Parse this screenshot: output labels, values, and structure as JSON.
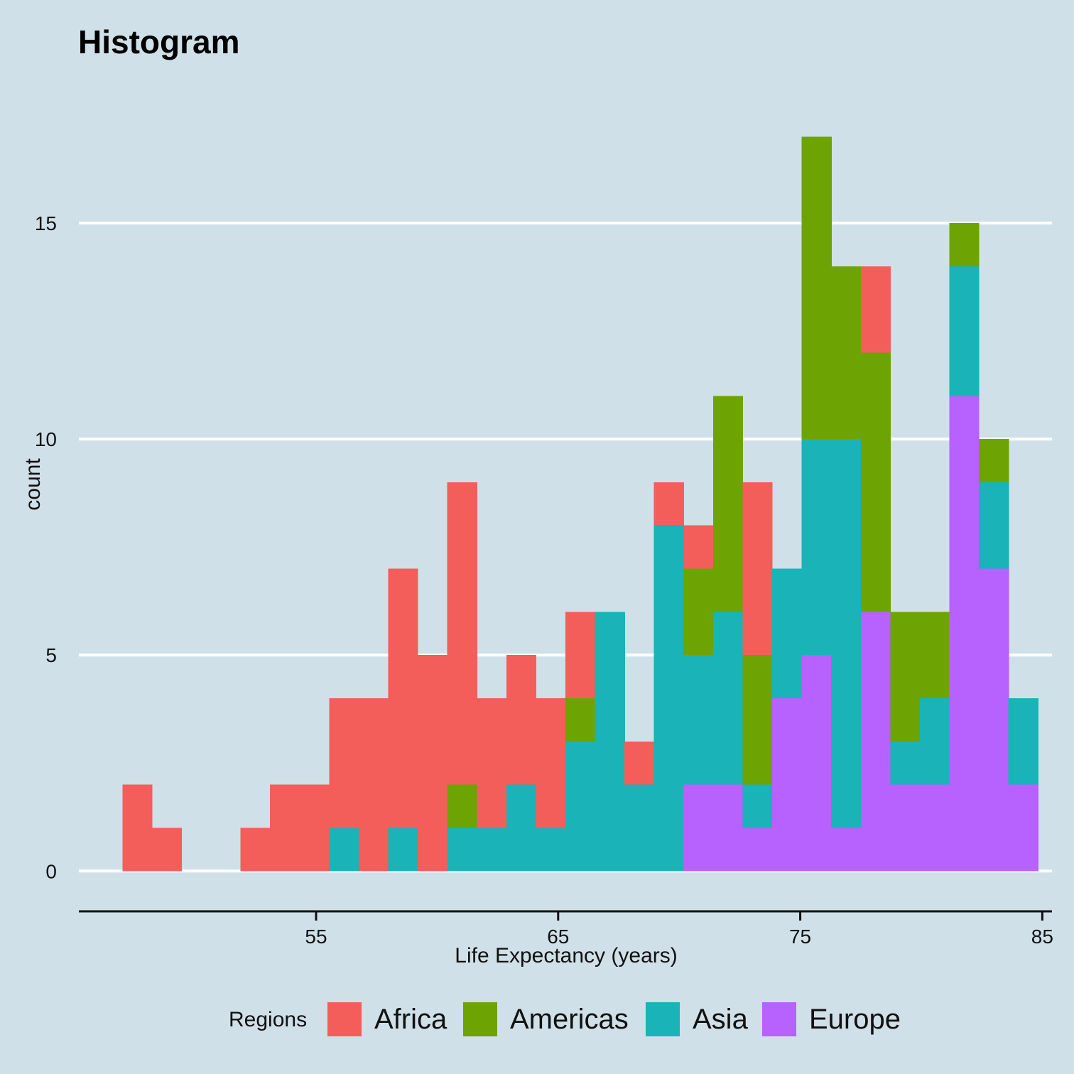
{
  "chart_data": {
    "type": "bar",
    "subtype": "stacked-histogram",
    "title": "Histogram",
    "xlabel": "Life Expectancy (years)",
    "ylabel": "count",
    "x_ticks": [
      55,
      65,
      75,
      85
    ],
    "y_ticks": [
      0,
      5,
      10,
      15
    ],
    "xlim": [
      45.2,
      85.4
    ],
    "ylim": [
      -0.85,
      18.6
    ],
    "grid": "horizontal",
    "legend": {
      "title": "Regions",
      "position": "bottom",
      "entries": [
        "Africa",
        "Americas",
        "Asia",
        "Europe"
      ]
    },
    "bin_start": 47.0,
    "bin_width": 1.22,
    "series": [
      {
        "name": "Europe",
        "color": "#b761ff",
        "values": [
          0,
          0,
          0,
          0,
          0,
          0,
          0,
          0,
          0,
          0,
          0,
          0,
          0,
          0,
          0,
          0,
          0,
          0,
          0,
          2,
          2,
          1,
          4,
          5,
          1,
          6,
          2,
          2,
          11,
          7,
          2
        ]
      },
      {
        "name": "Asia",
        "color": "#19b3b8",
        "values": [
          0,
          0,
          0,
          0,
          0,
          0,
          0,
          1,
          0,
          1,
          0,
          1,
          1,
          2,
          1,
          3,
          6,
          2,
          8,
          3,
          4,
          1,
          3,
          5,
          9,
          0,
          1,
          2,
          3,
          2,
          2
        ]
      },
      {
        "name": "Americas",
        "color": "#6da303",
        "values": [
          0,
          0,
          0,
          0,
          0,
          0,
          0,
          0,
          0,
          0,
          0,
          1,
          0,
          0,
          0,
          1,
          0,
          0,
          0,
          2,
          5,
          3,
          0,
          7,
          4,
          6,
          3,
          2,
          1,
          1,
          0
        ]
      },
      {
        "name": "Africa",
        "color": "#f35e5a",
        "values": [
          2,
          1,
          0,
          0,
          1,
          2,
          2,
          3,
          4,
          6,
          5,
          7,
          3,
          3,
          3,
          2,
          0,
          1,
          1,
          1,
          0,
          4,
          0,
          0,
          0,
          2,
          0,
          0,
          0,
          0,
          0
        ]
      }
    ]
  }
}
